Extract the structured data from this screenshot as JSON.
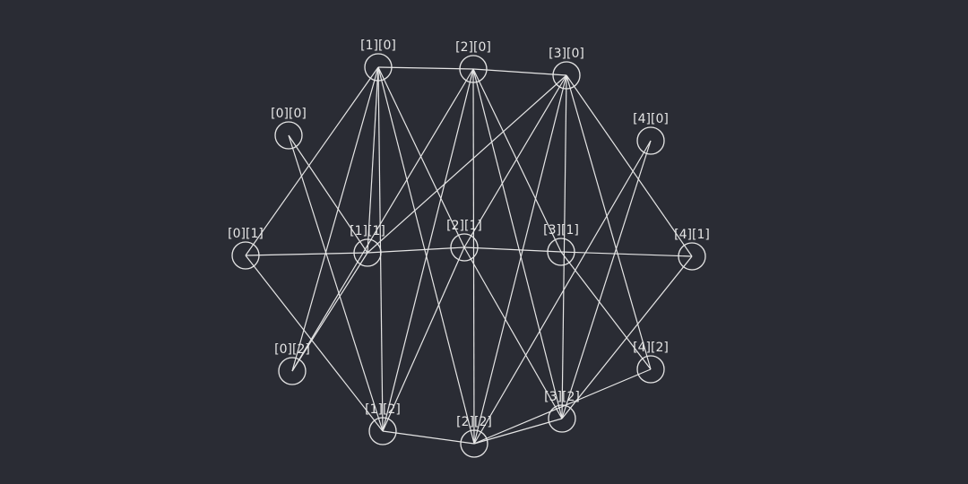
{
  "colors": {
    "background": "#2a2c34",
    "stroke": "#e6e6e6",
    "label": "#e6e6e6"
  },
  "nodes": [
    {
      "id": "0-0",
      "label": "[0][0]"
    },
    {
      "id": "1-0",
      "label": "[1][0]"
    },
    {
      "id": "2-0",
      "label": "[2][0]"
    },
    {
      "id": "3-0",
      "label": "[3][0]"
    },
    {
      "id": "4-0",
      "label": "[4][0]"
    },
    {
      "id": "0-1",
      "label": "[0][1]"
    },
    {
      "id": "1-1",
      "label": "[1][1]"
    },
    {
      "id": "2-1",
      "label": "[2][1]"
    },
    {
      "id": "3-1",
      "label": "[3][1]"
    },
    {
      "id": "4-1",
      "label": "[4][1]"
    },
    {
      "id": "0-2",
      "label": "[0][2]"
    },
    {
      "id": "1-2",
      "label": "[1][2]"
    },
    {
      "id": "2-2",
      "label": "[2][2]"
    },
    {
      "id": "3-2",
      "label": "[3][2]"
    },
    {
      "id": "4-2",
      "label": "[4][2]"
    }
  ],
  "edges": [
    [
      "1-0",
      "2-0"
    ],
    [
      "2-0",
      "3-0"
    ],
    [
      "0-1",
      "1-1"
    ],
    [
      "1-1",
      "2-1"
    ],
    [
      "2-1",
      "3-1"
    ],
    [
      "3-1",
      "4-1"
    ],
    [
      "1-2",
      "2-2"
    ],
    [
      "2-2",
      "3-2"
    ],
    [
      "1-0",
      "0-1"
    ],
    [
      "1-0",
      "0-2"
    ],
    [
      "1-0",
      "1-1"
    ],
    [
      "1-0",
      "2-1"
    ],
    [
      "1-0",
      "1-2"
    ],
    [
      "1-0",
      "2-2"
    ],
    [
      "0-0",
      "1-1"
    ],
    [
      "0-0",
      "1-2"
    ],
    [
      "2-0",
      "0-2"
    ],
    [
      "2-0",
      "1-2"
    ],
    [
      "2-0",
      "3-1"
    ],
    [
      "2-0",
      "2-2"
    ],
    [
      "2-0",
      "3-2"
    ],
    [
      "3-0",
      "1-1"
    ],
    [
      "3-0",
      "2-1"
    ],
    [
      "3-0",
      "2-2"
    ],
    [
      "3-0",
      "3-2"
    ],
    [
      "3-0",
      "4-1"
    ],
    [
      "3-0",
      "4-2"
    ],
    [
      "4-0",
      "2-2"
    ],
    [
      "4-0",
      "3-2"
    ],
    [
      "0-1",
      "1-2"
    ],
    [
      "0-2",
      "1-1"
    ],
    [
      "1-2",
      "2-1"
    ],
    [
      "2-1",
      "3-2"
    ],
    [
      "4-1",
      "3-2"
    ],
    [
      "3-1",
      "4-2"
    ],
    [
      "2-2",
      "4-2"
    ]
  ]
}
